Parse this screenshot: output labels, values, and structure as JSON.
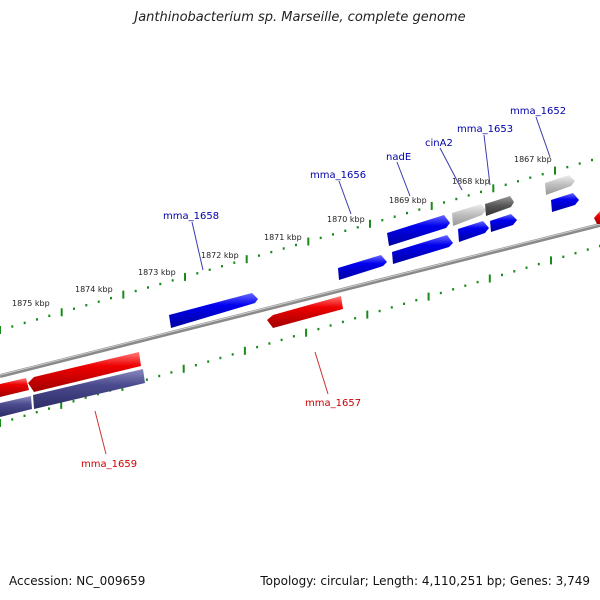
{
  "title": "Janthinobacterium sp. Marseille, complete genome",
  "footer": {
    "accession": "Accession: NC_009659",
    "summary": "Topology: circular; Length: 4,110,251 bp; Genes: 3,749"
  },
  "colors": {
    "forward_gene": "#0000ee",
    "reverse_gene": "#ee0000",
    "label_forward": "#0000aa",
    "label_reverse": "#cc0000",
    "tick": "#1a8a1a",
    "backbone": "#777777",
    "cds_purple": "#4a4a8e",
    "pseudo_light": "#bdbdbd",
    "pseudo_dark": "#555555"
  },
  "kbp_labels": [
    "1867 kbp",
    "1868 kbp",
    "1869 kbp",
    "1870 kbp",
    "1871 kbp",
    "1872 kbp",
    "1873 kbp",
    "1874 kbp",
    "1875 kbp"
  ],
  "gene_labels": [
    "mma_1652",
    "mma_1653",
    "cinA2",
    "nadE",
    "mma_1656",
    "mma_1658",
    "mma_1657",
    "mma_1659"
  ]
}
